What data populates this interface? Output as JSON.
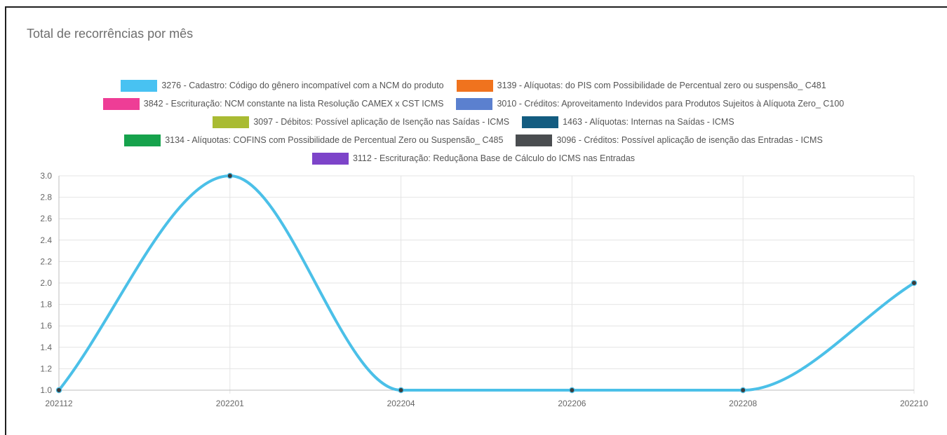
{
  "panel": {
    "title": "Total de recorrências por mês"
  },
  "chart_data": {
    "type": "line",
    "title": "",
    "xlabel": "",
    "ylabel": "",
    "categories": [
      "202112",
      "202201",
      "202204",
      "202206",
      "202208",
      "202210"
    ],
    "series": [
      {
        "name": "3276 - Cadastro: Código do gênero incompatível com a NCM do produto",
        "color": "#4bc0e8",
        "values": [
          1,
          3,
          1,
          1,
          1,
          2
        ]
      }
    ],
    "legend": {
      "placement": "top",
      "rows": [
        [
          {
            "label": "3276 - Cadastro: Código do gênero incompatível com a NCM do produto",
            "color": "#48c2f2"
          },
          {
            "label": "3139 - Alíquotas: do PIS com Possibilidade de Percentual zero ou suspensão_ C481",
            "color": "#f0731e"
          }
        ],
        [
          {
            "label": "3842 - Escrituração: NCM constante na lista Resolução CAMEX x CST ICMS",
            "color": "#ee3d96"
          },
          {
            "label": "3010 - Créditos: Aproveitamento Indevidos para Produtos Sujeitos à Alíquota Zero_ C100",
            "color": "#5b80cf"
          }
        ],
        [
          {
            "label": "3097 - Débitos: Possível aplicação de Isenção nas Saídas - ICMS",
            "color": "#a9bb33"
          },
          {
            "label": "1463 - Alíquotas: Internas na Saídas - ICMS",
            "color": "#135c80"
          }
        ],
        [
          {
            "label": "3134 - Alíquotas: COFINS com Possibilidade de Percentual Zero ou Suspensão_ C485",
            "color": "#16a24c"
          },
          {
            "label": "3096 - Créditos: Possível aplicação de isenção das Entradas - ICMS",
            "color": "#4a4d50"
          }
        ],
        [
          {
            "label": "3112 - Escrituração: Reduçãona Base de Cálculo do ICMS nas Entradas",
            "color": "#7d44c9"
          }
        ]
      ]
    },
    "yaxis": {
      "ylim": [
        1.0,
        3.0
      ],
      "ticks": [
        "3.0",
        "2.8",
        "2.6",
        "2.4",
        "2.2",
        "2.0",
        "1.8",
        "1.6",
        "1.4",
        "1.2",
        "1.0"
      ]
    },
    "grid": true,
    "curve": "smooth"
  }
}
